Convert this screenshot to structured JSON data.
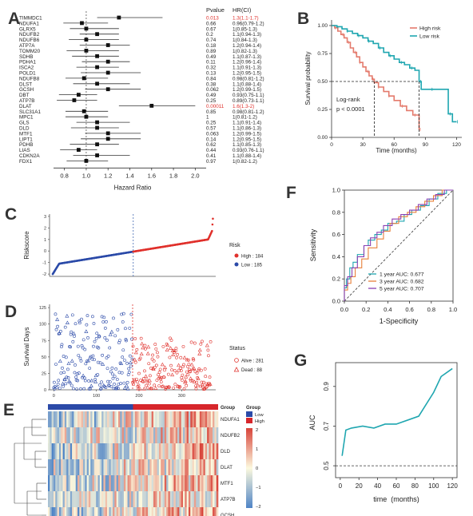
{
  "panel_letters": {
    "A": "A",
    "B": "B",
    "C": "C",
    "D": "D",
    "E": "E",
    "F": "F",
    "G": "G"
  },
  "colors": {
    "red": "#e0312c",
    "blue": "#2b4aa8",
    "teal": "#1fa6b0",
    "salmon": "#e47a6c",
    "orange": "#e8803a",
    "purple": "#8a3fb2",
    "heat_high": "#d8443a",
    "heat_low": "#4f84c6",
    "group_low": "#2b4aa8",
    "group_high": "#d7262b"
  },
  "chart_data": [
    {
      "panel": "A",
      "type": "scatter",
      "subtype": "forest",
      "header_pvalue": "Pvalue",
      "header_hr": "HR(CI)",
      "xlabel": "Hazard Ratio",
      "xlim": [
        0.7,
        2.1
      ],
      "xticks": [
        "0.8",
        "1.0",
        "1.2",
        "1.4",
        "1.6",
        "1.8",
        "2.0"
      ],
      "xtick_values": [
        0.8,
        1.0,
        1.2,
        1.4,
        1.6,
        1.8,
        2.0
      ],
      "rows": [
        {
          "gene": "TIMMDC1",
          "p": "0.013",
          "hrtext": "1.3(1.1-1.7)",
          "hr": 1.3,
          "lo": 1.1,
          "hi": 1.7,
          "sig": true
        },
        {
          "gene": "NDUFA1",
          "p": "0.66",
          "hrtext": "0.96(0.79-1.2)",
          "hr": 0.96,
          "lo": 0.79,
          "hi": 1.2,
          "sig": false
        },
        {
          "gene": "GLRX5",
          "p": "0.67",
          "hrtext": "1(0.85-1.3)",
          "hr": 1.0,
          "lo": 0.85,
          "hi": 1.3,
          "sig": false
        },
        {
          "gene": "NDUFB2",
          "p": "0.2",
          "hrtext": "1.1(0.94-1.3)",
          "hr": 1.1,
          "lo": 0.94,
          "hi": 1.3,
          "sig": false
        },
        {
          "gene": "NDUFB6",
          "p": "0.74",
          "hrtext": "1(0.84-1.3)",
          "hr": 1.0,
          "lo": 0.84,
          "hi": 1.3,
          "sig": false
        },
        {
          "gene": "ATP7A",
          "p": "0.18",
          "hrtext": "1.2(0.94-1.4)",
          "hr": 1.2,
          "lo": 0.94,
          "hi": 1.4,
          "sig": false
        },
        {
          "gene": "TOMM20",
          "p": "0.89",
          "hrtext": "1(0.82-1.3)",
          "hr": 1.0,
          "lo": 0.82,
          "hi": 1.3,
          "sig": false
        },
        {
          "gene": "SDHB",
          "p": "0.49",
          "hrtext": "1.1(0.87-1.3)",
          "hr": 1.1,
          "lo": 0.87,
          "hi": 1.3,
          "sig": false
        },
        {
          "gene": "PDHA1",
          "p": "0.11",
          "hrtext": "1.2(0.96-1.4)",
          "hr": 1.2,
          "lo": 0.96,
          "hi": 1.4,
          "sig": false
        },
        {
          "gene": "ISCA2",
          "p": "0.32",
          "hrtext": "1.1(0.91-1.3)",
          "hr": 1.1,
          "lo": 0.91,
          "hi": 1.3,
          "sig": false
        },
        {
          "gene": "POLD1",
          "p": "0.13",
          "hrtext": "1.2(0.95-1.5)",
          "hr": 1.2,
          "lo": 0.95,
          "hi": 1.5,
          "sig": false
        },
        {
          "gene": "NDUFB8",
          "p": "0.84",
          "hrtext": "0.98(0.81-1.2)",
          "hr": 0.98,
          "lo": 0.81,
          "hi": 1.2,
          "sig": false
        },
        {
          "gene": "DLST",
          "p": "0.38",
          "hrtext": "1.1(0.88-1.4)",
          "hr": 1.1,
          "lo": 0.88,
          "hi": 1.4,
          "sig": false
        },
        {
          "gene": "GCSH",
          "p": "0.062",
          "hrtext": "1.2(0.99-1.5)",
          "hr": 1.2,
          "lo": 0.99,
          "hi": 1.5,
          "sig": false
        },
        {
          "gene": "DBT",
          "p": "0.49",
          "hrtext": "0.93(0.75-1.1)",
          "hr": 0.93,
          "lo": 0.75,
          "hi": 1.1,
          "sig": false
        },
        {
          "gene": "ATP7B",
          "p": "0.25",
          "hrtext": "0.89(0.73-1.1)",
          "hr": 0.89,
          "lo": 0.73,
          "hi": 1.1,
          "sig": false
        },
        {
          "gene": "DLAT",
          "p": "0.00011",
          "hrtext": "1.6(1.3-2)",
          "hr": 1.6,
          "lo": 1.3,
          "hi": 2.0,
          "sig": true
        },
        {
          "gene": "SLC31A1",
          "p": "0.85",
          "hrtext": "0.98(0.81-1.2)",
          "hr": 0.98,
          "lo": 0.81,
          "hi": 1.2,
          "sig": false
        },
        {
          "gene": "MPC1",
          "p": "1",
          "hrtext": "1(0.81-1.2)",
          "hr": 1.0,
          "lo": 0.81,
          "hi": 1.2,
          "sig": false
        },
        {
          "gene": "GLS",
          "p": "0.25",
          "hrtext": "1.1(0.91-1.4)",
          "hr": 1.1,
          "lo": 0.91,
          "hi": 1.4,
          "sig": false
        },
        {
          "gene": "DLD",
          "p": "0.57",
          "hrtext": "1.1(0.86-1.3)",
          "hr": 1.1,
          "lo": 0.86,
          "hi": 1.3,
          "sig": false
        },
        {
          "gene": "MTF1",
          "p": "0.063",
          "hrtext": "1.2(0.99-1.5)",
          "hr": 1.2,
          "lo": 0.99,
          "hi": 1.5,
          "sig": false
        },
        {
          "gene": "LIPT1",
          "p": "0.14",
          "hrtext": "1.2(0.95-1.5)",
          "hr": 1.2,
          "lo": 0.95,
          "hi": 1.5,
          "sig": false
        },
        {
          "gene": "PDHB",
          "p": "0.62",
          "hrtext": "1.1(0.85-1.3)",
          "hr": 1.1,
          "lo": 0.85,
          "hi": 1.3,
          "sig": false
        },
        {
          "gene": "LIAS",
          "p": "0.44",
          "hrtext": "0.93(0.76-1.1)",
          "hr": 0.93,
          "lo": 0.76,
          "hi": 1.1,
          "sig": false
        },
        {
          "gene": "CDKN2A",
          "p": "0.41",
          "hrtext": "1.1(0.88-1.4)",
          "hr": 1.1,
          "lo": 0.88,
          "hi": 1.4,
          "sig": false
        },
        {
          "gene": "FDX1",
          "p": "0.97",
          "hrtext": "1(0.82-1.2)",
          "hr": 1.0,
          "lo": 0.82,
          "hi": 1.2,
          "sig": false
        }
      ]
    },
    {
      "panel": "B",
      "type": "line",
      "subtype": "kaplan-meier",
      "xlabel": "Time (months)",
      "ylabel": "Survival probability",
      "xlim": [
        0,
        125
      ],
      "ylim": [
        0,
        1.05
      ],
      "xticks": [
        "0",
        "30",
        "60",
        "90",
        "120"
      ],
      "xtick_values": [
        0,
        30,
        60,
        90,
        120
      ],
      "yticks": [
        "0.00",
        "0.25",
        "0.50",
        "0.75",
        "1.00"
      ],
      "ytick_values": [
        0,
        0.25,
        0.5,
        0.75,
        1.0
      ],
      "legend": [
        "High risk",
        "Low risk"
      ],
      "annotation": [
        "Log-rank",
        "p < 0.0001"
      ],
      "median_high": 41,
      "median_low": 84,
      "series": [
        {
          "name": "High risk",
          "points": [
            [
              0,
              1
            ],
            [
              3,
              0.98
            ],
            [
              6,
              0.95
            ],
            [
              9,
              0.92
            ],
            [
              12,
              0.89
            ],
            [
              15,
              0.85
            ],
            [
              18,
              0.8
            ],
            [
              21,
              0.76
            ],
            [
              24,
              0.72
            ],
            [
              27,
              0.67
            ],
            [
              30,
              0.63
            ],
            [
              33,
              0.59
            ],
            [
              36,
              0.55
            ],
            [
              39,
              0.52
            ],
            [
              41,
              0.49
            ],
            [
              45,
              0.45
            ],
            [
              50,
              0.41
            ],
            [
              55,
              0.37
            ],
            [
              60,
              0.33
            ],
            [
              66,
              0.28
            ],
            [
              72,
              0.24
            ],
            [
              78,
              0.2
            ],
            [
              84,
              0.19
            ],
            [
              84,
              0.07
            ]
          ]
        },
        {
          "name": "Low risk",
          "points": [
            [
              0,
              1
            ],
            [
              5,
              0.99
            ],
            [
              10,
              0.97
            ],
            [
              15,
              0.95
            ],
            [
              20,
              0.93
            ],
            [
              25,
              0.91
            ],
            [
              30,
              0.89
            ],
            [
              35,
              0.86
            ],
            [
              40,
              0.84
            ],
            [
              45,
              0.8
            ],
            [
              50,
              0.76
            ],
            [
              55,
              0.73
            ],
            [
              60,
              0.7
            ],
            [
              65,
              0.67
            ],
            [
              70,
              0.65
            ],
            [
              75,
              0.62
            ],
            [
              80,
              0.6
            ],
            [
              84,
              0.5
            ],
            [
              86,
              0.43
            ],
            [
              95,
              0.43
            ],
            [
              108,
              0.43
            ],
            [
              112,
              0.21
            ],
            [
              116,
              0.14
            ],
            [
              120,
              0.14
            ]
          ]
        }
      ]
    },
    {
      "panel": "C",
      "type": "scatter",
      "ylabel": "Riskscore",
      "yticks": [
        "-2",
        "-1",
        "0",
        "1",
        "2",
        "3"
      ],
      "ytick_values": [
        -2,
        -1,
        0,
        1,
        2,
        3
      ],
      "ylim": [
        -2.2,
        3.2
      ],
      "n_low": 185,
      "n_high": 184,
      "cutoff_index": 185,
      "legend_title": "Risk",
      "legend": [
        "High : 184",
        "Low : 185"
      ]
    },
    {
      "panel": "D",
      "type": "scatter",
      "ylabel": "Survival Days",
      "xticks": [
        "0",
        "100",
        "200",
        "300"
      ],
      "xtick_values": [
        0,
        100,
        200,
        300
      ],
      "yticks": [
        "0",
        "25",
        "50",
        "75",
        "100",
        "125"
      ],
      "ytick_values": [
        0,
        25,
        50,
        75,
        100,
        125
      ],
      "ylim": [
        0,
        130
      ],
      "xlim": [
        -10,
        380
      ],
      "legend_title": "Status",
      "legend": [
        "Alive : 281",
        "Dead : 88"
      ]
    },
    {
      "panel": "E",
      "type": "heatmap",
      "rows": [
        "NDUFA1",
        "NDUFB2",
        "DLD",
        "DLAT",
        "MTF1",
        "ATP7B",
        "GCSH"
      ],
      "group_label": "Group",
      "legend_title": "Group",
      "group_legend": [
        "Low",
        "High"
      ],
      "scale_ticks": [
        "2",
        "1",
        "0",
        "−1",
        "−2"
      ]
    },
    {
      "panel": "F",
      "type": "line",
      "subtype": "roc",
      "xlabel": "1-Specificity",
      "ylabel": "Sensitivity",
      "xticks": [
        "0.0",
        "0.2",
        "0.4",
        "0.6",
        "0.8",
        "1.0"
      ],
      "tick_values": [
        0,
        0.2,
        0.4,
        0.6,
        0.8,
        1.0
      ],
      "yticks": [
        "0.0",
        "0.2",
        "0.4",
        "0.6",
        "0.8",
        "1.0"
      ],
      "legend": [
        "1 year AUC: 0.677",
        "3 year AUC: 0.682",
        "5 year AUC: 0.707"
      ],
      "series": [
        {
          "name": "1 year AUC: 0.677",
          "points": [
            [
              0,
              0
            ],
            [
              0.02,
              0.12
            ],
            [
              0.05,
              0.2
            ],
            [
              0.08,
              0.3
            ],
            [
              0.12,
              0.35
            ],
            [
              0.18,
              0.42
            ],
            [
              0.22,
              0.5
            ],
            [
              0.28,
              0.55
            ],
            [
              0.34,
              0.6
            ],
            [
              0.4,
              0.64
            ],
            [
              0.48,
              0.7
            ],
            [
              0.55,
              0.72
            ],
            [
              0.62,
              0.78
            ],
            [
              0.7,
              0.82
            ],
            [
              0.78,
              0.86
            ],
            [
              0.86,
              0.92
            ],
            [
              0.94,
              0.97
            ],
            [
              1,
              1
            ]
          ]
        },
        {
          "name": "3 year AUC: 0.682",
          "points": [
            [
              0,
              0
            ],
            [
              0.03,
              0.1
            ],
            [
              0.06,
              0.16
            ],
            [
              0.1,
              0.22
            ],
            [
              0.16,
              0.3
            ],
            [
              0.22,
              0.38
            ],
            [
              0.3,
              0.48
            ],
            [
              0.36,
              0.56
            ],
            [
              0.42,
              0.63
            ],
            [
              0.5,
              0.7
            ],
            [
              0.58,
              0.76
            ],
            [
              0.66,
              0.8
            ],
            [
              0.74,
              0.85
            ],
            [
              0.82,
              0.9
            ],
            [
              0.9,
              0.95
            ],
            [
              1,
              1
            ]
          ]
        },
        {
          "name": "5 year AUC: 0.707",
          "points": [
            [
              0,
              0
            ],
            [
              0.03,
              0.14
            ],
            [
              0.07,
              0.22
            ],
            [
              0.12,
              0.3
            ],
            [
              0.18,
              0.4
            ],
            [
              0.24,
              0.5
            ],
            [
              0.3,
              0.57
            ],
            [
              0.36,
              0.62
            ],
            [
              0.44,
              0.68
            ],
            [
              0.52,
              0.74
            ],
            [
              0.6,
              0.78
            ],
            [
              0.68,
              0.82
            ],
            [
              0.76,
              0.87
            ],
            [
              0.84,
              0.92
            ],
            [
              0.92,
              0.96
            ],
            [
              1,
              1
            ]
          ]
        }
      ]
    },
    {
      "panel": "G",
      "type": "line",
      "xlabel": "time  (months)",
      "ylabel": "AUC",
      "xticks": [
        "0",
        "20",
        "40",
        "60",
        "80",
        "100",
        "120"
      ],
      "xtick_values": [
        0,
        20,
        40,
        60,
        80,
        100,
        120
      ],
      "yticks": [
        "0.5",
        "0.7",
        "0.9"
      ],
      "ytick_values": [
        0.5,
        0.7,
        0.9
      ],
      "xlim": [
        -5,
        125
      ],
      "ylim": [
        0.44,
        1.02
      ],
      "baseline": 0.5,
      "series": [
        {
          "name": "",
          "x": [
            2,
            6,
            12,
            24,
            36,
            48,
            60,
            84,
            100,
            108,
            120
          ],
          "y": [
            0.55,
            0.68,
            0.69,
            0.7,
            0.69,
            0.71,
            0.71,
            0.75,
            0.87,
            0.95,
            0.99
          ]
        }
      ]
    }
  ]
}
